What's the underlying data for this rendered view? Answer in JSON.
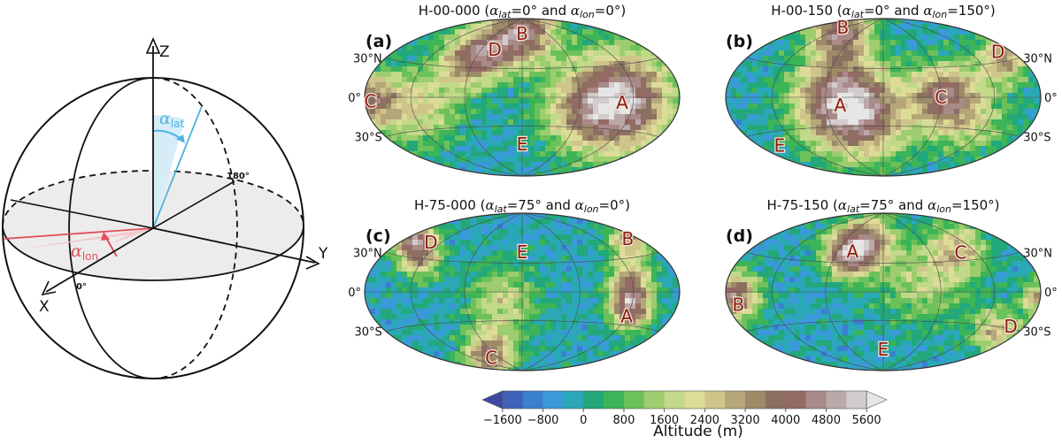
{
  "sphere": {
    "axis_z": "Z",
    "axis_y": "Y",
    "axis_x": "X",
    "label_180": "180°",
    "label_0": "0°",
    "alpha_lat": {
      "symbol": "α",
      "sub": "lat",
      "color": "#4bb3e0"
    },
    "alpha_lon": {
      "symbol": "α",
      "sub": "lon",
      "color": "#e0505a"
    }
  },
  "panels": [
    {
      "id": "a",
      "label": "(a)",
      "code": "H-00-000",
      "t_lat": "=0°",
      "mid": " and ",
      "t_lon": "=0°",
      "regions": [
        {
          "k": "A",
          "lon": 107,
          "lat": -5
        },
        {
          "k": "B",
          "lon": 0,
          "lat": 70
        },
        {
          "k": "C",
          "lon": -172,
          "lat": -3
        },
        {
          "k": "D",
          "lon": -40,
          "lat": 50
        },
        {
          "k": "E",
          "lon": 0,
          "lat": -50
        }
      ],
      "peaks": [
        {
          "lon": 107,
          "lat": -3,
          "h": 1.0,
          "w": 28
        },
        {
          "lon": 5,
          "lat": 72,
          "h": 0.9,
          "w": 18
        },
        {
          "lon": -172,
          "lat": -2,
          "h": 0.7,
          "w": 16
        },
        {
          "lon": -45,
          "lat": 48,
          "h": 0.55,
          "w": 14
        },
        {
          "lon": -70,
          "lat": 35,
          "h": 0.6,
          "w": 16
        },
        {
          "lon": -110,
          "lat": -10,
          "h": 0.45,
          "w": 22
        },
        {
          "lon": 60,
          "lat": -15,
          "h": 0.4,
          "w": 24
        }
      ]
    },
    {
      "id": "b",
      "label": "(b)",
      "code": "H-00-150",
      "t_lat": "=0°",
      "mid": " and ",
      "t_lon": "=150°",
      "regions": [
        {
          "k": "A",
          "lon": -45,
          "lat": -8
        },
        {
          "k": "B",
          "lon": -125,
          "lat": 72
        },
        {
          "k": "C",
          "lon": 60,
          "lat": 0
        },
        {
          "k": "D",
          "lon": 160,
          "lat": 38
        },
        {
          "k": "E",
          "lon": -150,
          "lat": -42
        }
      ],
      "peaks": [
        {
          "lon": -45,
          "lat": -4,
          "h": 0.95,
          "w": 26
        },
        {
          "lon": -120,
          "lat": 70,
          "h": 0.85,
          "w": 16
        },
        {
          "lon": 62,
          "lat": 2,
          "h": 0.75,
          "w": 18
        },
        {
          "lon": 158,
          "lat": 33,
          "h": 0.65,
          "w": 14
        },
        {
          "lon": -10,
          "lat": -25,
          "h": 0.45,
          "w": 24
        },
        {
          "lon": 100,
          "lat": -20,
          "h": 0.35,
          "w": 22
        }
      ]
    },
    {
      "id": "c",
      "label": "(c)",
      "code": "H-75-000",
      "t_lat": "=75°",
      "mid": " and ",
      "t_lon": "=0°",
      "regions": [
        {
          "k": "A",
          "lon": 120,
          "lat": -22
        },
        {
          "k": "B",
          "lon": 165,
          "lat": 45
        },
        {
          "k": "C",
          "lon": -80,
          "lat": -70
        },
        {
          "k": "D",
          "lon": -135,
          "lat": 45
        },
        {
          "k": "E",
          "lon": 0,
          "lat": 42
        }
      ],
      "peaks": [
        {
          "lon": 120,
          "lat": -15,
          "h": 0.85,
          "w": 12
        },
        {
          "lon": 118,
          "lat": 10,
          "h": 0.6,
          "w": 12
        },
        {
          "lon": 170,
          "lat": 45,
          "h": 0.65,
          "w": 12
        },
        {
          "lon": -170,
          "lat": 45,
          "h": 0.7,
          "w": 12
        },
        {
          "lon": -80,
          "lat": -68,
          "h": 0.75,
          "w": 14
        },
        {
          "lon": -125,
          "lat": 30,
          "h": 0.5,
          "w": 12
        },
        {
          "lon": -20,
          "lat": -10,
          "h": 0.4,
          "w": 20
        }
      ]
    },
    {
      "id": "d",
      "label": "(d)",
      "code": "H-75-150",
      "t_lat": "=75°",
      "mid": " and ",
      "t_lon": "=150°",
      "regions": [
        {
          "k": "A",
          "lon": -40,
          "lat": 42
        },
        {
          "k": "B",
          "lon": -165,
          "lat": -10
        },
        {
          "k": "C",
          "lon": 100,
          "lat": 38
        },
        {
          "k": "D",
          "lon": 160,
          "lat": -28
        },
        {
          "k": "E",
          "lon": 0,
          "lat": -62
        }
      ],
      "peaks": [
        {
          "lon": -45,
          "lat": 40,
          "h": 0.9,
          "w": 14
        },
        {
          "lon": -20,
          "lat": 55,
          "h": 0.6,
          "w": 14
        },
        {
          "lon": -168,
          "lat": -3,
          "h": 0.85,
          "w": 14
        },
        {
          "lon": 100,
          "lat": 40,
          "h": 0.5,
          "w": 16
        },
        {
          "lon": 150,
          "lat": -35,
          "h": 0.55,
          "w": 14
        },
        {
          "lon": 178,
          "lat": -5,
          "h": 0.6,
          "w": 10
        },
        {
          "lon": 40,
          "lat": 10,
          "h": 0.35,
          "w": 24
        }
      ]
    }
  ],
  "lat_labels": {
    "n30": "30°N",
    "eq": "0°",
    "s30": "30°S"
  },
  "colorbar": {
    "title": "Altitude (m)",
    "ticks": [
      "−1600",
      "−800",
      "0",
      "800",
      "1600",
      "2400",
      "3200",
      "4000",
      "4800",
      "5600"
    ],
    "colors": [
      "#3b4aa0",
      "#3f62b8",
      "#3b7fcf",
      "#3a99d9",
      "#2aa8b8",
      "#22a87a",
      "#3cb458",
      "#6cc15a",
      "#9dcd6e",
      "#c2d98a",
      "#dcdc98",
      "#cfc48a",
      "#b5a77a",
      "#9c8a68",
      "#8a7060",
      "#946b64",
      "#a88a88",
      "#bba8a8",
      "#d3cccc",
      "#e6e6e6"
    ]
  }
}
